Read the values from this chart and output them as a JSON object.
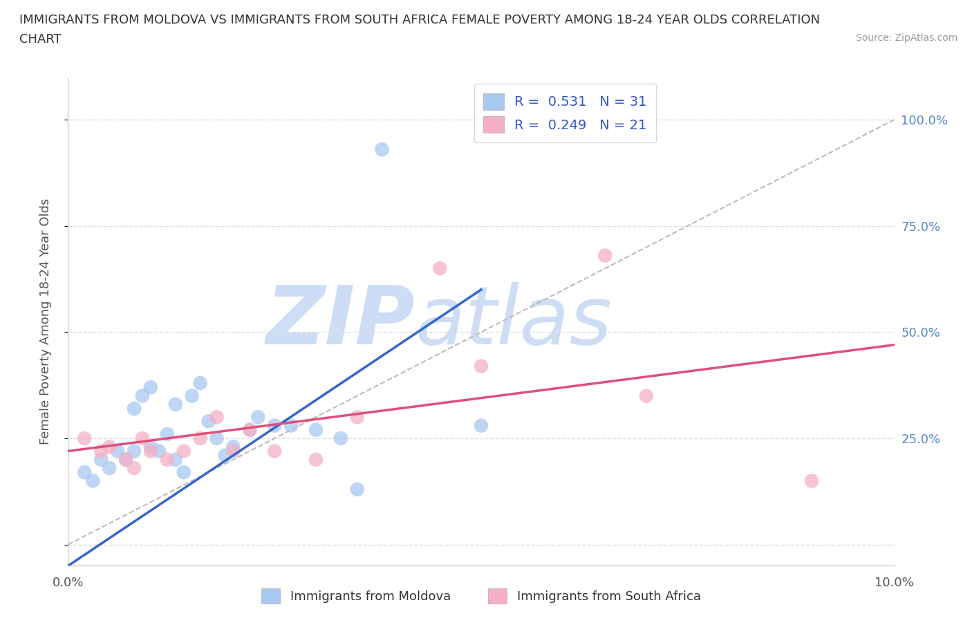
{
  "title_line1": "IMMIGRANTS FROM MOLDOVA VS IMMIGRANTS FROM SOUTH AFRICA FEMALE POVERTY AMONG 18-24 YEAR OLDS CORRELATION",
  "title_line2": "CHART",
  "source_text": "Source: ZipAtlas.com",
  "ylabel": "Female Poverty Among 18-24 Year Olds",
  "xlim": [
    0.0,
    0.1
  ],
  "ylim": [
    -0.05,
    1.1
  ],
  "ytick_positions": [
    0.0,
    0.25,
    0.5,
    0.75,
    1.0
  ],
  "ytick_labels_right": [
    "",
    "25.0%",
    "50.0%",
    "75.0%",
    "100.0%"
  ],
  "xticks": [
    0.0,
    0.02,
    0.04,
    0.06,
    0.08,
    0.1
  ],
  "xtick_labels": [
    "0.0%",
    "",
    "",
    "",
    "",
    "10.0%"
  ],
  "legend_R1": "0.531",
  "legend_N1": "31",
  "legend_R2": "0.249",
  "legend_N2": "21",
  "color_moldova": "#a8c8f0",
  "color_moldova_line": "#3366cc",
  "color_sa": "#f5b0c5",
  "color_sa_line": "#e0507a",
  "watermark_color": "#ccddf5",
  "background_color": "#ffffff",
  "grid_color": "#dddddd",
  "moldova_x": [
    0.002,
    0.003,
    0.004,
    0.005,
    0.006,
    0.007,
    0.008,
    0.008,
    0.009,
    0.01,
    0.01,
    0.011,
    0.012,
    0.013,
    0.013,
    0.014,
    0.015,
    0.016,
    0.017,
    0.018,
    0.019,
    0.02,
    0.022,
    0.023,
    0.025,
    0.027,
    0.03,
    0.033,
    0.038,
    0.05,
    0.035
  ],
  "moldova_y": [
    0.17,
    0.15,
    0.2,
    0.18,
    0.22,
    0.2,
    0.32,
    0.22,
    0.35,
    0.37,
    0.23,
    0.22,
    0.26,
    0.33,
    0.2,
    0.17,
    0.35,
    0.38,
    0.29,
    0.25,
    0.21,
    0.23,
    0.27,
    0.3,
    0.28,
    0.28,
    0.27,
    0.25,
    0.93,
    0.28,
    0.13
  ],
  "sa_x": [
    0.002,
    0.004,
    0.005,
    0.007,
    0.008,
    0.009,
    0.01,
    0.012,
    0.014,
    0.016,
    0.018,
    0.02,
    0.022,
    0.025,
    0.03,
    0.035,
    0.045,
    0.05,
    0.065,
    0.07,
    0.09
  ],
  "sa_y": [
    0.25,
    0.22,
    0.23,
    0.2,
    0.18,
    0.25,
    0.22,
    0.2,
    0.22,
    0.25,
    0.3,
    0.22,
    0.27,
    0.22,
    0.2,
    0.3,
    0.65,
    0.42,
    0.68,
    0.35,
    0.15
  ],
  "legend_bottom_labels": [
    "Immigrants from Moldova",
    "Immigrants from South Africa"
  ],
  "mol_line_x0": 0.0,
  "mol_line_y0": -0.05,
  "mol_line_x1": 0.05,
  "mol_line_y1": 0.6,
  "sa_line_x0": 0.0,
  "sa_line_y0": 0.22,
  "sa_line_x1": 0.1,
  "sa_line_y1": 0.47
}
